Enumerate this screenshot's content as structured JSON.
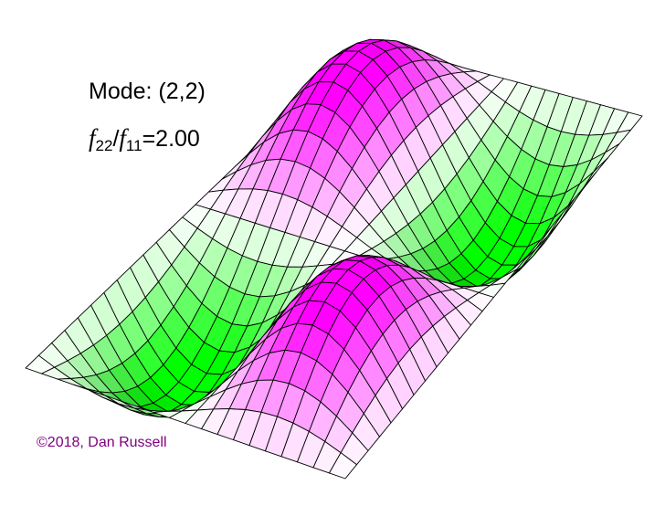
{
  "labels": {
    "mode": "Mode: (2,2)",
    "ratio_num_symbol": "f",
    "ratio_num_sub": "22",
    "ratio_slash": "/",
    "ratio_den_symbol": "f",
    "ratio_den_sub": "11",
    "ratio_value": "=2.00",
    "copyright": "©2018, Dan Russell"
  },
  "mode": {
    "m": 2,
    "n": 2
  },
  "colors": {
    "positive": "#ff00ff",
    "negative": "#00ff00",
    "mesh": "#000000",
    "copyright": "#800080"
  }
}
